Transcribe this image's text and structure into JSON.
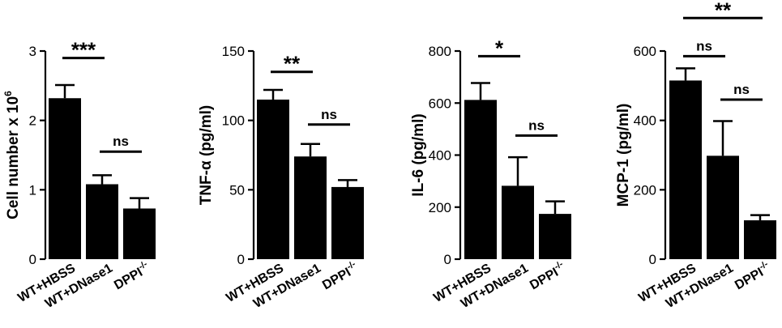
{
  "chart_data": [
    {
      "type": "bar",
      "ylabel": "Cell number x 10",
      "ylabel_sup": "6",
      "ylim": [
        0,
        3
      ],
      "yticks": [
        "0",
        "1",
        "2",
        "3"
      ],
      "categories": [
        "WT+HBSS",
        "WT+DNase1",
        "DPPI"
      ],
      "category_sup": [
        "",
        "",
        "-/-"
      ],
      "values": [
        2.32,
        1.08,
        0.73
      ],
      "errors": [
        0.19,
        0.13,
        0.15
      ],
      "annotations": [
        {
          "text": "***",
          "from": 0,
          "to": 1,
          "y": 2.9
        },
        {
          "text": "ns",
          "from": 1,
          "to": 2,
          "y": 1.55
        }
      ]
    },
    {
      "type": "bar",
      "ylabel": "TNF-α (pg/ml)",
      "ylabel_sup": "",
      "ylim": [
        0,
        150
      ],
      "yticks": [
        "0",
        "50",
        "100",
        "150"
      ],
      "categories": [
        "WT+HBSS",
        "WT+DNase1",
        "DPPI"
      ],
      "category_sup": [
        "",
        "",
        "-/-"
      ],
      "values": [
        115,
        74,
        52
      ],
      "errors": [
        7,
        9,
        5
      ],
      "annotations": [
        {
          "text": "**",
          "from": 0,
          "to": 1,
          "y": 135
        },
        {
          "text": "ns",
          "from": 1,
          "to": 2,
          "y": 97
        }
      ]
    },
    {
      "type": "bar",
      "ylabel": "IL-6 (pg/ml)",
      "ylabel_sup": "",
      "ylim": [
        0,
        800
      ],
      "yticks": [
        "0",
        "200",
        "400",
        "600",
        "800"
      ],
      "categories": [
        "WT+HBSS",
        "WT+DNase1",
        "DPPI"
      ],
      "category_sup": [
        "",
        "",
        "-/-"
      ],
      "values": [
        612,
        282,
        174
      ],
      "errors": [
        65,
        110,
        48
      ],
      "annotations": [
        {
          "text": "*",
          "from": 0,
          "to": 1,
          "y": 780
        },
        {
          "text": "ns",
          "from": 1,
          "to": 2,
          "y": 475
        }
      ]
    },
    {
      "type": "bar",
      "ylabel": "MCP-1 (pg/ml)",
      "ylabel_sup": "",
      "ylim": [
        0,
        600
      ],
      "yticks": [
        "0",
        "200",
        "400",
        "600"
      ],
      "categories": [
        "WT+HBSS",
        "WT+DNase1",
        "DPPI"
      ],
      "category_sup": [
        "",
        "",
        "-/-"
      ],
      "values": [
        515,
        298,
        112
      ],
      "errors": [
        35,
        100,
        15
      ],
      "annotations": [
        {
          "text": "**",
          "from": 0,
          "to": 2,
          "y": 695
        },
        {
          "text": "ns",
          "from": 0,
          "to": 1,
          "y": 585
        },
        {
          "text": "ns",
          "from": 1,
          "to": 2,
          "y": 460
        }
      ]
    }
  ]
}
